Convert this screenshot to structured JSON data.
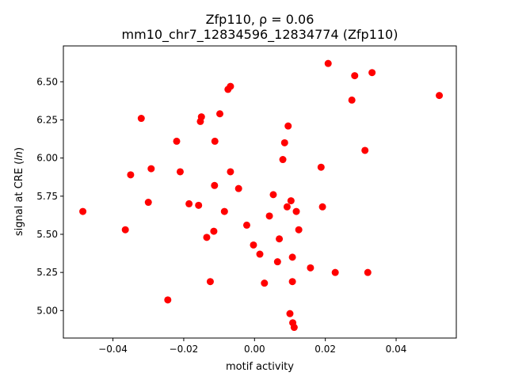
{
  "chart_data": {
    "type": "scatter",
    "title_line1": "Zfp110, ρ = 0.06",
    "title_line2": "mm10_chr7_12834596_12834774 (Zfp110)",
    "xlabel": "motif activity",
    "ylabel": "signal at CRE (ln)",
    "xlim": [
      -0.054,
      0.057
    ],
    "ylim": [
      4.82,
      6.735
    ],
    "xticks": [
      -0.04,
      -0.02,
      0.0,
      0.02,
      0.04
    ],
    "xtick_labels": [
      "−0.04",
      "−0.02",
      "0.00",
      "0.02",
      "0.04"
    ],
    "yticks": [
      5.0,
      5.25,
      5.5,
      5.75,
      6.0,
      6.25,
      6.5
    ],
    "ytick_labels": [
      "5.00",
      "5.25",
      "5.50",
      "5.75",
      "6.00",
      "6.25",
      "6.50"
    ],
    "grid": false,
    "marker_color": "#ff0000",
    "points": [
      {
        "x": -0.0485,
        "y": 5.65
      },
      {
        "x": -0.0365,
        "y": 5.53
      },
      {
        "x": -0.035,
        "y": 5.89
      },
      {
        "x": -0.032,
        "y": 6.26
      },
      {
        "x": -0.03,
        "y": 5.71
      },
      {
        "x": -0.0292,
        "y": 5.93
      },
      {
        "x": -0.0245,
        "y": 5.07
      },
      {
        "x": -0.022,
        "y": 6.11
      },
      {
        "x": -0.021,
        "y": 5.91
      },
      {
        "x": -0.0185,
        "y": 5.7
      },
      {
        "x": -0.0158,
        "y": 5.69
      },
      {
        "x": -0.0153,
        "y": 6.24
      },
      {
        "x": -0.015,
        "y": 6.27
      },
      {
        "x": -0.0135,
        "y": 5.48
      },
      {
        "x": -0.0125,
        "y": 5.19
      },
      {
        "x": -0.0115,
        "y": 5.52
      },
      {
        "x": -0.0113,
        "y": 5.82
      },
      {
        "x": -0.0112,
        "y": 6.11
      },
      {
        "x": -0.0098,
        "y": 6.29
      },
      {
        "x": -0.0085,
        "y": 5.65
      },
      {
        "x": -0.0075,
        "y": 6.45
      },
      {
        "x": -0.0068,
        "y": 6.47
      },
      {
        "x": -0.0068,
        "y": 5.91
      },
      {
        "x": -0.0045,
        "y": 5.8
      },
      {
        "x": -0.0022,
        "y": 5.56
      },
      {
        "x": -0.0003,
        "y": 5.43
      },
      {
        "x": 0.0015,
        "y": 5.37
      },
      {
        "x": 0.0028,
        "y": 5.18
      },
      {
        "x": 0.0042,
        "y": 5.62
      },
      {
        "x": 0.0053,
        "y": 5.76
      },
      {
        "x": 0.0065,
        "y": 5.32
      },
      {
        "x": 0.007,
        "y": 5.47
      },
      {
        "x": 0.008,
        "y": 5.99
      },
      {
        "x": 0.0085,
        "y": 6.1
      },
      {
        "x": 0.0092,
        "y": 5.68
      },
      {
        "x": 0.0095,
        "y": 6.21
      },
      {
        "x": 0.01,
        "y": 4.98
      },
      {
        "x": 0.0103,
        "y": 5.72
      },
      {
        "x": 0.0107,
        "y": 5.35
      },
      {
        "x": 0.0107,
        "y": 5.19
      },
      {
        "x": 0.0108,
        "y": 4.92
      },
      {
        "x": 0.0112,
        "y": 4.89
      },
      {
        "x": 0.0118,
        "y": 5.65
      },
      {
        "x": 0.0125,
        "y": 5.53
      },
      {
        "x": 0.0158,
        "y": 5.28
      },
      {
        "x": 0.0188,
        "y": 5.94
      },
      {
        "x": 0.0192,
        "y": 5.68
      },
      {
        "x": 0.0208,
        "y": 6.62
      },
      {
        "x": 0.0228,
        "y": 5.25
      },
      {
        "x": 0.0275,
        "y": 6.38
      },
      {
        "x": 0.0283,
        "y": 6.54
      },
      {
        "x": 0.0312,
        "y": 6.05
      },
      {
        "x": 0.032,
        "y": 5.25
      },
      {
        "x": 0.0332,
        "y": 6.56
      },
      {
        "x": 0.0522,
        "y": 6.41
      }
    ]
  }
}
